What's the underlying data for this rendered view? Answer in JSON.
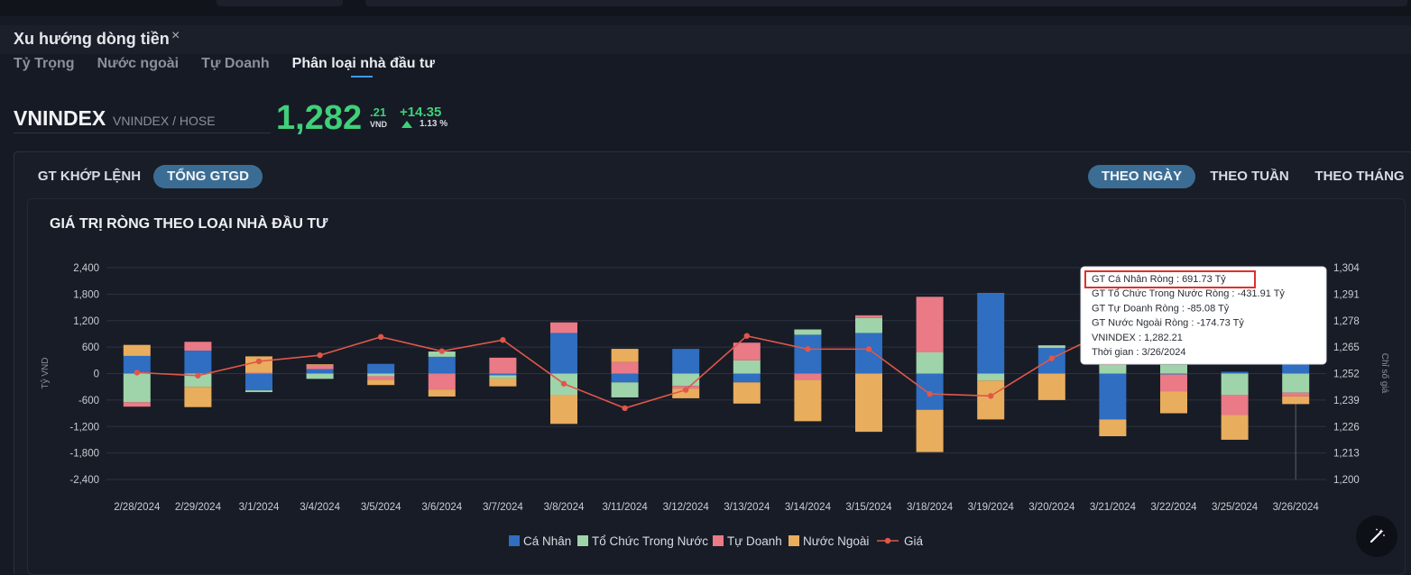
{
  "panel": {
    "title": "Xu hướng dòng tiền",
    "close": "×"
  },
  "subtabs": [
    {
      "label": "Tỷ Trọng",
      "active": false
    },
    {
      "label": "Nước ngoài",
      "active": false
    },
    {
      "label": "Tự Doanh",
      "active": false
    },
    {
      "label": "Phân loại nhà đầu tư",
      "active": true
    }
  ],
  "ticker": {
    "symbol": "VNINDEX",
    "exchange": "VNINDEX / HOSE",
    "price_int": "1,282",
    "price_dec": ".21",
    "unit": "VND",
    "change": "+14.35",
    "change_pct": "1.13 %"
  },
  "value_tabs": [
    {
      "label": "GT KHỚP LỆNH",
      "active": false
    },
    {
      "label": "TỔNG GTGD",
      "active": true
    }
  ],
  "period_tabs": [
    {
      "label": "THEO NGÀY",
      "active": true
    },
    {
      "label": "THEO TUẦN",
      "active": false
    },
    {
      "label": "THEO THÁNG",
      "active": false
    }
  ],
  "colors": {
    "ca_nhan": "#2f6ec1",
    "to_chuc": "#9fd3aa",
    "tu_doanh": "#e97a86",
    "nuoc_ngoai": "#e9ad5e",
    "gia": "#e0574a",
    "accent_green": "#3fd07a",
    "tab_active": "#3b6d94"
  },
  "chart_data": {
    "type": "bar",
    "stacked": true,
    "title": "GIÁ TRỊ RÒNG THEO LOẠI NHÀ ĐẦU TƯ",
    "ylabel": "Tỷ VND",
    "y2label": "Chỉ số giá",
    "ylim": [
      -2400,
      2400
    ],
    "y2lim": [
      1200,
      1304
    ],
    "y_ticks": [
      "2,400",
      "1,800",
      "1,200",
      "600",
      "0",
      "-600",
      "-1,200",
      "-1,800",
      "-2,400"
    ],
    "y2_ticks": [
      "1,304",
      "1,291",
      "1,278",
      "1,265",
      "1,252",
      "1,239",
      "1,226",
      "1,213",
      "1,200"
    ],
    "grid": true,
    "legend": "bottom",
    "categories": [
      "2/28/2024",
      "2/29/2024",
      "3/1/2024",
      "3/4/2024",
      "3/5/2024",
      "3/6/2024",
      "3/7/2024",
      "3/8/2024",
      "3/11/2024",
      "3/12/2024",
      "3/13/2024",
      "3/14/2024",
      "3/15/2024",
      "3/18/2024",
      "3/19/2024",
      "3/20/2024",
      "3/21/2024",
      "3/22/2024",
      "3/25/2024",
      "3/26/2024"
    ],
    "series": [
      {
        "name": "Cá Nhân",
        "values": [
          400,
          520,
          -380,
          100,
          220,
          380,
          -40,
          920,
          -200,
          560,
          -200,
          880,
          920,
          -820,
          1820,
          580,
          -1040,
          -20,
          40,
          691.73
        ]
      },
      {
        "name": "Tổ Chức Trong Nước",
        "values": [
          -650,
          -300,
          -40,
          -120,
          -60,
          120,
          -70,
          -480,
          -340,
          -280,
          300,
          120,
          340,
          480,
          -160,
          60,
          200,
          200,
          -480,
          -431.91
        ]
      },
      {
        "name": "Tự Doanh",
        "values": [
          -100,
          200,
          20,
          80,
          -80,
          -360,
          360,
          240,
          260,
          -60,
          400,
          -140,
          60,
          1260,
          0,
          0,
          160,
          -380,
          -460,
          -85.08
        ]
      },
      {
        "name": "Nước Ngoài",
        "values": [
          250,
          -460,
          370,
          30,
          -120,
          -160,
          -180,
          -660,
          300,
          -220,
          -480,
          -940,
          -1320,
          -960,
          -880,
          -600,
          -380,
          -500,
          -560,
          -174.73
        ]
      }
    ],
    "price_series": {
      "name": "Giá",
      "values": [
        1252.5,
        1251,
        1258,
        1261,
        1270,
        1263,
        1268.5,
        1247,
        1235,
        1244,
        1270.5,
        1264,
        1264,
        1242,
        1241,
        1259.5,
        1274,
        1271,
        1268,
        1282.21
      ]
    },
    "legend_items": [
      "Cá Nhân",
      "Tổ Chức Trong Nước",
      "Tự Doanh",
      "Nước Ngoài",
      "Giá"
    ],
    "tooltip": {
      "lines": [
        "GT Cá Nhân Ròng  : 691.73 Tỷ",
        "GT Tổ Chức Trong Nước Ròng : -431.91 Tỷ",
        "GT Tự Doanh Ròng : -85.08 Tỷ",
        "GT Nước Ngoài Ròng : -174.73 Tỷ",
        "VNINDEX : 1,282.21",
        "Thời gian : 3/26/2024"
      ]
    }
  }
}
